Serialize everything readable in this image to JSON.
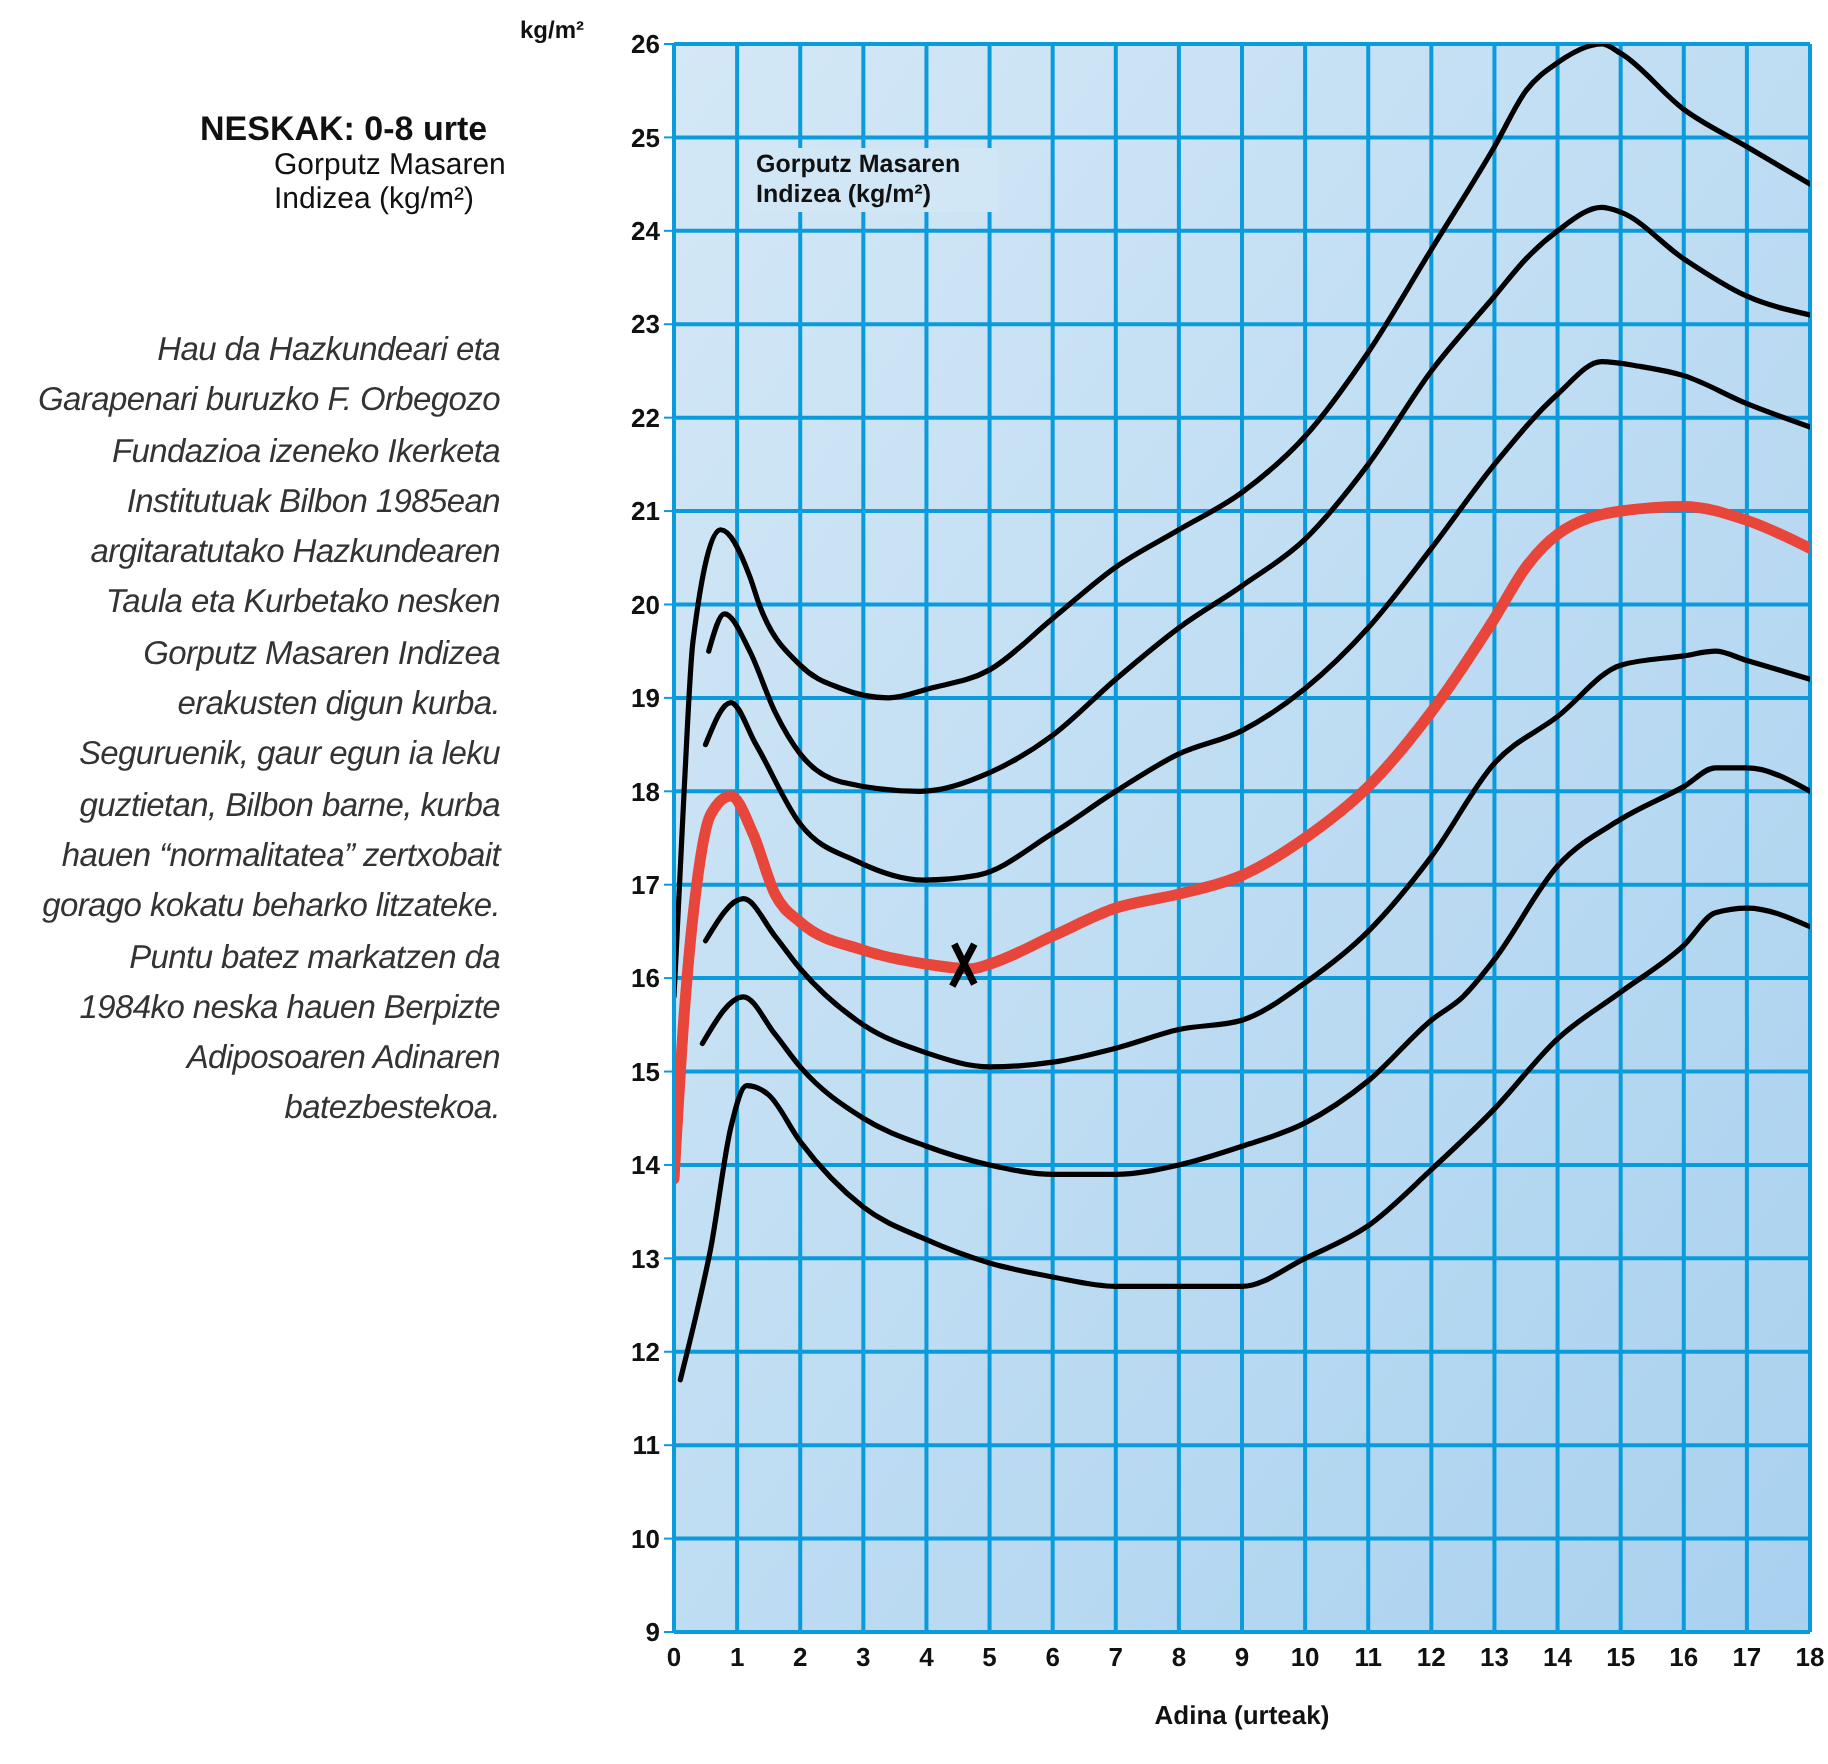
{
  "chart_data": {
    "type": "line",
    "title": "NESKAK: 0-8 urte",
    "subtitle": "Gorputz Masaren Indizea (kg/m²)",
    "xlabel": "Adina (urteak)",
    "ylabel": "kg/m²",
    "annotations": [
      "Gorputz Masaren Indizea (kg/m²)",
      "Hau da Hazkundeari eta Garapenari buruzko F. Orbegozo Fundazioa izeneko Ikerketa Institutuak Bilbon 1985ean argitaratutako Hazkundearen Taula eta Kurbetako nesken Gorputz Masaren Indizea erakusten digun kurba. Seguruenik, gaur egun ia leku guztietan, Bilbon barne, kurba hauen “normalitatea” zertxobait gorago kokatu beharko litzateke. Puntu batez markatzen da 1984ko neska hauen Berpizte Adiposoaren Adinaren batezbestekoa."
    ],
    "xlim": [
      0,
      18
    ],
    "xticks": [
      0,
      1,
      2,
      3,
      4,
      5,
      6,
      7,
      8,
      9,
      10,
      11,
      12,
      13,
      14,
      15,
      16,
      17,
      18
    ],
    "ylim": [
      9,
      26
    ],
    "yticks": [
      9,
      10,
      11,
      12,
      13,
      14,
      15,
      16,
      17,
      18,
      19,
      20,
      21,
      22,
      23,
      24,
      25,
      26
    ],
    "grid": true,
    "marker": "none",
    "line_style": "solid",
    "series": [
      {
        "color": "#000000",
        "x": [
          0,
          0.16,
          0.3,
          0.74,
          1.2,
          1.35,
          2,
          2.65,
          3.4,
          4.05,
          5,
          6,
          7,
          8,
          9,
          10,
          11,
          12,
          13,
          13.5,
          14,
          14.7,
          15,
          16,
          17,
          18
        ],
        "values": [
          15.8,
          18,
          19.6,
          20.8,
          20.3,
          20,
          19.35,
          19.1,
          19,
          19.1,
          19.3,
          19.85,
          20.4,
          20.8,
          21.2,
          21.8,
          22.7,
          23.8,
          24.9,
          25.5,
          25.8,
          26,
          25.9,
          25.3,
          24.9,
          24.5
        ]
      },
      {
        "color": "#000000",
        "x": [
          0.55,
          0.8,
          1.2,
          1.6,
          2,
          2.65,
          3.9,
          5,
          6,
          7,
          8,
          9,
          10,
          11,
          12,
          13,
          13.5,
          14,
          14.7,
          15,
          16,
          17,
          18
        ],
        "values": [
          19.5,
          19.9,
          19.5,
          18.85,
          18.4,
          18.1,
          18,
          18.2,
          18.6,
          19.2,
          19.75,
          20.2,
          20.7,
          21.5,
          22.5,
          23.3,
          23.7,
          24,
          24.25,
          24.2,
          23.7,
          23.3,
          23.1
        ]
      },
      {
        "color": "#000000",
        "x": [
          0.5,
          0.9,
          1.3,
          2,
          2.9,
          3.95,
          4.8,
          6,
          7,
          8,
          9,
          10,
          11,
          12,
          13,
          14,
          14.7,
          15.3,
          16,
          17,
          18
        ],
        "values": [
          18.5,
          18.95,
          18.5,
          17.65,
          17.25,
          17.05,
          17.1,
          17.55,
          18,
          18.4,
          18.65,
          19.1,
          19.75,
          20.6,
          21.5,
          22.25,
          22.6,
          22.55,
          22.45,
          22.15,
          21.9
        ]
      },
      {
        "color": "#e8463b",
        "x": [
          0,
          0.16,
          0.37,
          0.58,
          0.9,
          1.25,
          1.6,
          2,
          3,
          4,
          4.7,
          5,
          6,
          7,
          8,
          9,
          10,
          11,
          12,
          13,
          13.5,
          14,
          15,
          16,
          17,
          18
        ],
        "values": [
          13.85,
          15.6,
          17.05,
          17.75,
          17.95,
          17.55,
          16.9,
          16.6,
          16.3,
          16.15,
          16.1,
          16.15,
          16.45,
          16.75,
          16.9,
          17.1,
          17.5,
          18.05,
          18.85,
          19.85,
          20.4,
          20.75,
          21,
          21.05,
          20.9,
          20.6
        ]
      },
      {
        "color": "#000000",
        "x": [
          0.5,
          1.1,
          1.6,
          2,
          3,
          4,
          5,
          6,
          7,
          8,
          9,
          10,
          11,
          12,
          13,
          14,
          15,
          16,
          16.5,
          17,
          18
        ],
        "values": [
          16.4,
          16.85,
          16.45,
          16.1,
          15.5,
          15.2,
          15.05,
          15.1,
          15.25,
          15.45,
          15.55,
          15.95,
          16.5,
          17.3,
          18.3,
          18.8,
          19.35,
          19.45,
          19.5,
          19.4,
          19.2
        ]
      },
      {
        "color": "#000000",
        "x": [
          0.45,
          1.1,
          1.6,
          2,
          3,
          4,
          5,
          6,
          7,
          8,
          9,
          10,
          11,
          12,
          12.5,
          13,
          14,
          15,
          16,
          16.5,
          17,
          18
        ],
        "values": [
          15.3,
          15.8,
          15.4,
          15.05,
          14.5,
          14.2,
          14,
          13.9,
          13.9,
          14,
          14.2,
          14.45,
          14.9,
          15.55,
          15.8,
          16.2,
          17.2,
          17.7,
          18.05,
          18.25,
          18.25,
          18
        ]
      },
      {
        "color": "#000000",
        "x": [
          0.1,
          0.37,
          0.58,
          0.9,
          1.15,
          1.5,
          2,
          3,
          4,
          5,
          6,
          7,
          8,
          9,
          10,
          11,
          12,
          13,
          14,
          15,
          16,
          16.5,
          17,
          18
        ],
        "values": [
          11.7,
          12.45,
          13.1,
          14.4,
          14.85,
          14.75,
          14.25,
          13.55,
          13.2,
          12.95,
          12.8,
          12.7,
          12.7,
          12.7,
          13,
          13.35,
          13.95,
          14.6,
          15.35,
          15.85,
          16.35,
          16.7,
          16.75,
          16.55
        ]
      },
      {
        "type": "scatter",
        "color": "#000000",
        "marker": "cross",
        "x": [
          4.6
        ],
        "values": [
          16.15
        ]
      }
    ]
  }
}
